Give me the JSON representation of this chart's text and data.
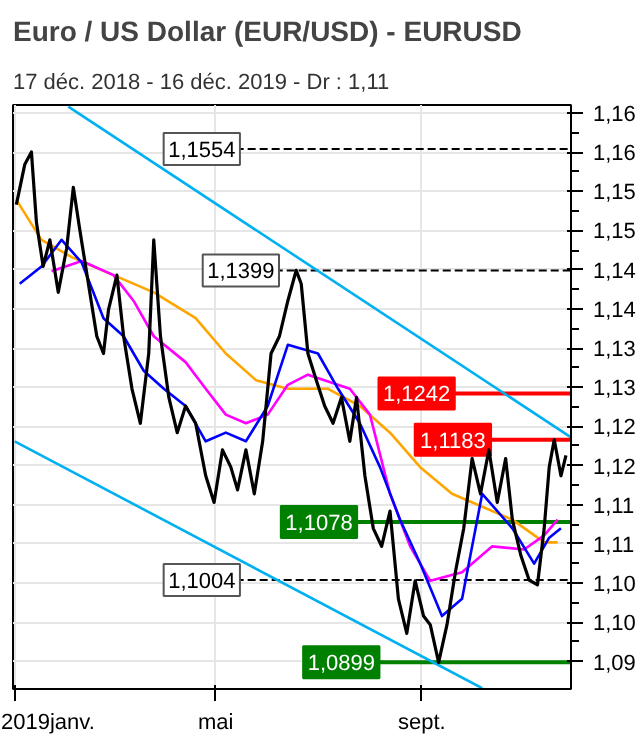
{
  "chart_data": {
    "type": "line",
    "title": "Euro / US Dollar (EUR/USD) - EURUSD",
    "subtitle": "17 déc. 2018 - 16 déc. 2019 - Dr : 1,11",
    "xlim": [
      "2018-12-31",
      "2019-11-29"
    ],
    "ylim": [
      1.0865,
      1.161
    ],
    "xticks": [
      {
        "value": "2019-01-01",
        "label": "2019janv."
      },
      {
        "value": "2019-05-01",
        "label": "mai"
      },
      {
        "value": "2019-09-01",
        "label": "sept."
      }
    ],
    "yticks": [
      {
        "value": 1.09,
        "label": "1,09"
      },
      {
        "value": 1.095,
        "label": "1,10"
      },
      {
        "value": 1.1,
        "label": "1,10"
      },
      {
        "value": 1.105,
        "label": "1,11"
      },
      {
        "value": 1.11,
        "label": "1,11"
      },
      {
        "value": 1.115,
        "label": "1,12"
      },
      {
        "value": 1.12,
        "label": "1,12"
      },
      {
        "value": 1.125,
        "label": "1,13"
      },
      {
        "value": 1.13,
        "label": "1,13"
      },
      {
        "value": 1.135,
        "label": "1,14"
      },
      {
        "value": 1.14,
        "label": "1,14"
      },
      {
        "value": 1.145,
        "label": "1,15"
      },
      {
        "value": 1.15,
        "label": "1,15"
      },
      {
        "value": 1.155,
        "label": "1,16"
      },
      {
        "value": 1.16,
        "label": "1,16"
      }
    ],
    "grid": true,
    "series": [
      {
        "color": "#00b0f0",
        "x": [
          "2019-02-02",
          "2019-11-29"
        ],
        "values": [
          1.1608,
          1.1186
        ]
      },
      {
        "color": "#00b0f0",
        "x": [
          "2019-01-01",
          "2019-10-07"
        ],
        "values": [
          1.1181,
          1.0866
        ]
      },
      {
        "color": "#ffa500",
        "x": [
          "2019-01-02",
          "2019-01-17",
          "2019-02-04",
          "2019-03-01",
          "2019-03-25",
          "2019-04-19",
          "2019-05-07",
          "2019-05-25",
          "2019-06-13",
          "2019-07-07",
          "2019-07-26",
          "2019-08-13",
          "2019-08-31",
          "2019-09-19",
          "2019-10-25",
          "2019-11-13",
          "2019-11-21"
        ],
        "values": [
          1.1489,
          1.1438,
          1.1416,
          1.1393,
          1.1371,
          1.1338,
          1.1293,
          1.1259,
          1.1248,
          1.1248,
          1.1226,
          1.1192,
          1.1148,
          1.1114,
          1.1081,
          1.1052,
          1.1052
        ]
      },
      {
        "color": "#ff00ff",
        "x": [
          "2019-01-23",
          "2019-02-10",
          "2019-03-01",
          "2019-03-13",
          "2019-03-25",
          "2019-04-13",
          "2019-04-25",
          "2019-05-07",
          "2019-05-19",
          "2019-06-01",
          "2019-06-13",
          "2019-06-25",
          "2019-07-20",
          "2019-08-01",
          "2019-08-13",
          "2019-08-25",
          "2019-09-06",
          "2019-09-25",
          "2019-10-13",
          "2019-11-01",
          "2019-11-13",
          "2019-11-21"
        ],
        "values": [
          1.1398,
          1.1411,
          1.1393,
          1.136,
          1.1315,
          1.1282,
          1.1248,
          1.1215,
          1.1204,
          1.1215,
          1.1253,
          1.1266,
          1.1248,
          1.1215,
          1.1114,
          1.1047,
          1.1003,
          1.1014,
          1.1047,
          1.1043,
          1.1061,
          1.1081
        ]
      },
      {
        "color": "#0000ff",
        "x": [
          "2019-01-04",
          "2019-01-17",
          "2019-01-29",
          "2019-02-10",
          "2019-02-23",
          "2019-03-07",
          "2019-03-19",
          "2019-03-31",
          "2019-04-13",
          "2019-04-25",
          "2019-05-07",
          "2019-05-19",
          "2019-06-01",
          "2019-06-13",
          "2019-07-01",
          "2019-07-13",
          "2019-07-26",
          "2019-08-07",
          "2019-08-19",
          "2019-08-31",
          "2019-09-13",
          "2019-09-25",
          "2019-10-07",
          "2019-10-25",
          "2019-11-07",
          "2019-11-16",
          "2019-11-23"
        ],
        "values": [
          1.1382,
          1.1404,
          1.1438,
          1.1409,
          1.1338,
          1.1315,
          1.1271,
          1.1248,
          1.1226,
          1.1181,
          1.1192,
          1.1181,
          1.1226,
          1.1304,
          1.1293,
          1.1248,
          1.1204,
          1.1148,
          1.1081,
          1.1025,
          1.0958,
          1.098,
          1.1114,
          1.107,
          1.1025,
          1.1058,
          1.107
        ]
      },
      {
        "color": "#000000",
        "x": [
          "2019-01-02",
          "2019-01-07",
          "2019-01-11",
          "2019-01-14",
          "2019-01-18",
          "2019-01-22",
          "2019-01-27",
          "2019-02-01",
          "2019-02-05",
          "2019-02-09",
          "2019-02-14",
          "2019-02-19",
          "2019-02-23",
          "2019-02-26",
          "2019-03-03",
          "2019-03-07",
          "2019-03-12",
          "2019-03-17",
          "2019-03-22",
          "2019-03-25",
          "2019-03-29",
          "2019-04-03",
          "2019-04-08",
          "2019-04-13",
          "2019-04-19",
          "2019-04-25",
          "2019-04-30",
          "2019-05-05",
          "2019-05-10",
          "2019-05-14",
          "2019-05-19",
          "2019-05-24",
          "2019-05-29",
          "2019-06-03",
          "2019-06-08",
          "2019-06-13",
          "2019-06-18",
          "2019-06-21",
          "2019-06-25",
          "2019-06-30",
          "2019-07-05",
          "2019-07-10",
          "2019-07-15",
          "2019-07-20",
          "2019-07-24",
          "2019-07-29",
          "2019-08-03",
          "2019-08-08",
          "2019-08-13",
          "2019-08-18",
          "2019-08-23",
          "2019-08-28",
          "2019-09-02",
          "2019-09-06",
          "2019-09-11",
          "2019-09-16",
          "2019-09-21",
          "2019-09-26",
          "2019-10-01",
          "2019-10-06",
          "2019-10-11",
          "2019-10-16",
          "2019-10-21",
          "2019-10-25",
          "2019-10-30",
          "2019-11-04",
          "2019-11-09",
          "2019-11-13",
          "2019-11-16",
          "2019-11-19",
          "2019-11-23",
          "2019-11-26"
        ],
        "values": [
          1.1483,
          1.1534,
          1.155,
          1.146,
          1.1404,
          1.1438,
          1.1371,
          1.1427,
          1.1505,
          1.1449,
          1.1382,
          1.1315,
          1.1293,
          1.1349,
          1.1393,
          1.1315,
          1.1248,
          1.1204,
          1.1293,
          1.1438,
          1.1315,
          1.1237,
          1.1192,
          1.1226,
          1.1204,
          1.1137,
          1.1103,
          1.117,
          1.1148,
          1.1119,
          1.117,
          1.1114,
          1.1181,
          1.1293,
          1.1315,
          1.136,
          1.1399,
          1.1382,
          1.1293,
          1.1259,
          1.1226,
          1.1204,
          1.1237,
          1.1181,
          1.1237,
          1.1137,
          1.107,
          1.1047,
          1.1092,
          1.098,
          1.0936,
          1.1003,
          1.0958,
          1.0947,
          1.0899,
          1.0947,
          1.1014,
          1.107,
          1.1159,
          1.1114,
          1.117,
          1.1103,
          1.1159,
          1.1081,
          1.1036,
          1.1004,
          1.0998,
          1.107,
          1.1148,
          1.1183,
          1.1137,
          1.1163
        ]
      }
    ],
    "ref_lines": [
      {
        "axis": "y",
        "value": 1.1554,
        "label": "1,1554",
        "color": "#000000",
        "line_style": "dashed"
      },
      {
        "axis": "y",
        "value": 1.1399,
        "label": "1,1399",
        "color": "#000000",
        "line_style": "dashed"
      },
      {
        "axis": "y",
        "value": 1.1242,
        "label": "1,1242",
        "color": "#ff0000",
        "line_style": "solid"
      },
      {
        "axis": "y",
        "value": 1.1183,
        "label": "1,1183",
        "color": "#ff0000",
        "line_style": "solid"
      },
      {
        "axis": "y",
        "value": 1.1078,
        "label": "1,1078",
        "color": "#008000",
        "line_style": "solid"
      },
      {
        "axis": "y",
        "value": 1.1004,
        "label": "1,1004",
        "color": "#000000",
        "line_style": "dashed"
      },
      {
        "axis": "y",
        "value": 1.0899,
        "label": "1,0899",
        "color": "#008000",
        "line_style": "solid"
      }
    ]
  }
}
